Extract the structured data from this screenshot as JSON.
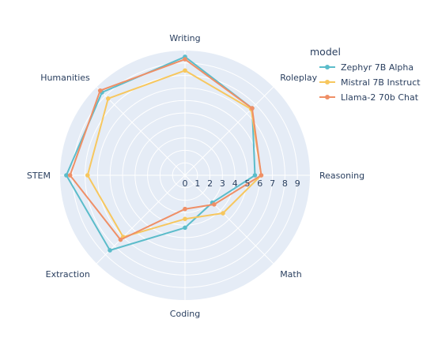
{
  "chart_data": {
    "type": "radar",
    "categories": [
      "Writing",
      "Roleplay",
      "Reasoning",
      "Math",
      "Coding",
      "Extraction",
      "STEM",
      "Humanities"
    ],
    "radial_ticks": [
      "0",
      "1",
      "2",
      "3",
      "4",
      "5",
      "6",
      "7",
      "8",
      "9"
    ],
    "radial_range": [
      0,
      10
    ],
    "grid": true,
    "legend_title": "model",
    "legend_position": "top-right",
    "series": [
      {
        "name": "Zephyr 7B Alpha",
        "color": "#5bbcca",
        "values": [
          9.5,
          7.6,
          5.6,
          3.1,
          4.2,
          8.5,
          9.5,
          9.4
        ]
      },
      {
        "name": "Mistral 7B Instruct",
        "color": "#f7c75e",
        "values": [
          8.4,
          7.5,
          6.1,
          4.3,
          3.5,
          7.0,
          7.8,
          8.7
        ]
      },
      {
        "name": "Llama-2 70b Chat",
        "color": "#ef8f66",
        "values": [
          9.3,
          7.6,
          6.1,
          3.3,
          2.7,
          7.3,
          9.2,
          9.6
        ]
      }
    ]
  }
}
